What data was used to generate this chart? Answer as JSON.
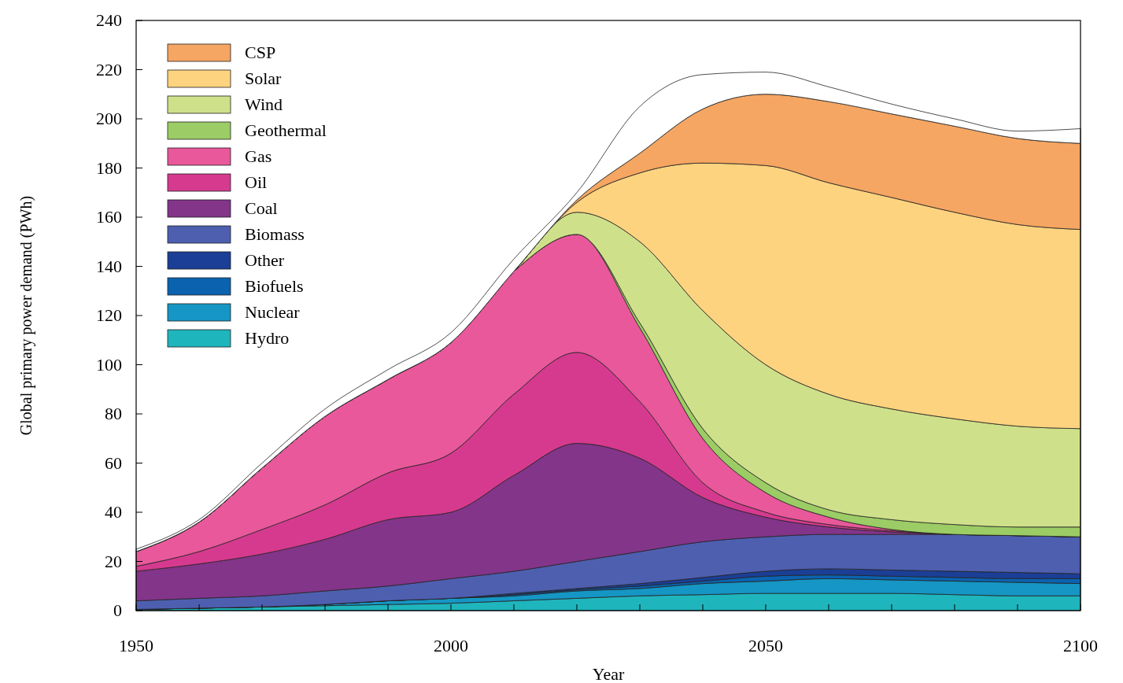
{
  "chart_data": {
    "type": "area",
    "stacked": true,
    "xlabel": "Year",
    "ylabel": "Global primary power demand (PWh)",
    "x": [
      1950,
      1960,
      1970,
      1980,
      1990,
      2000,
      2010,
      2020,
      2030,
      2040,
      2050,
      2060,
      2070,
      2080,
      2090,
      2100
    ],
    "xlim": [
      1950,
      2100
    ],
    "xticks": [
      1950,
      {
        "value": 1960,
        "label": null
      },
      {
        "value": 1970,
        "label": null
      },
      {
        "value": 1980,
        "label": null
      },
      {
        "value": 1990,
        "label": null
      },
      2000,
      {
        "value": 2010,
        "label": null
      },
      {
        "value": 2020,
        "label": null
      },
      {
        "value": 2030,
        "label": null
      },
      {
        "value": 2040,
        "label": null
      },
      2050,
      {
        "value": 2060,
        "label": null
      },
      {
        "value": 2070,
        "label": null
      },
      {
        "value": 2080,
        "label": null
      },
      {
        "value": 2090,
        "label": null
      },
      2100
    ],
    "ylim": [
      0,
      240
    ],
    "yticks": [
      0,
      20,
      40,
      60,
      80,
      100,
      120,
      140,
      160,
      180,
      200,
      220,
      240
    ],
    "grid": false,
    "legend": "top left",
    "series": [
      {
        "name": "Hydro",
        "color": "#1fb5bd",
        "values": [
          0.5,
          1,
          1.5,
          2,
          2.5,
          3,
          4,
          5,
          6,
          6.5,
          7,
          7,
          7,
          6.5,
          6,
          6
        ]
      },
      {
        "name": "Nuclear",
        "color": "#1596c4",
        "values": [
          0,
          0,
          0,
          0.5,
          1.5,
          2,
          2,
          3,
          3,
          4.5,
          5,
          6,
          5.5,
          5.5,
          5.5,
          5
        ]
      },
      {
        "name": "Biofuels",
        "color": "#0b63b0",
        "values": [
          0,
          0,
          0,
          0,
          0,
          0,
          0.5,
          0.5,
          1,
          1,
          2,
          1.5,
          1.5,
          1.5,
          1.5,
          2
        ]
      },
      {
        "name": "Other",
        "color": "#1b3f96",
        "values": [
          0,
          0,
          0,
          0,
          0,
          0,
          0.5,
          0.5,
          1,
          1.5,
          2,
          2.5,
          2.5,
          2.5,
          2.5,
          2
        ]
      },
      {
        "name": "Biomass",
        "color": "#4e5fb0",
        "values": [
          3.5,
          4,
          4.5,
          5.5,
          6,
          8,
          9,
          11,
          13,
          14.5,
          14,
          14,
          14.5,
          15,
          15,
          15
        ]
      },
      {
        "name": "Coal",
        "color": "#83358a",
        "values": [
          12,
          14,
          17,
          21,
          27,
          27,
          39,
          48,
          38,
          18,
          8,
          3,
          1,
          0,
          0,
          0
        ]
      },
      {
        "name": "Oil",
        "color": "#d63a8f",
        "values": [
          2,
          5,
          10,
          14,
          19,
          24,
          33,
          37,
          23,
          6,
          2,
          1,
          0.5,
          0,
          0,
          0
        ]
      },
      {
        "name": "Gas",
        "color": "#e8589a",
        "values": [
          6,
          12,
          25,
          36,
          38,
          45,
          50,
          48,
          30,
          18,
          8,
          3,
          0.5,
          0,
          0,
          0
        ]
      },
      {
        "name": "Geothermal",
        "color": "#9ccc65",
        "values": [
          0,
          0,
          0,
          0,
          0,
          0,
          0,
          0,
          2,
          4,
          4,
          3,
          4,
          4,
          3.5,
          4
        ]
      },
      {
        "name": "Wind",
        "color": "#cfe08a",
        "values": [
          0,
          0,
          0,
          0,
          0,
          0,
          0,
          9,
          33,
          48,
          48,
          47,
          45,
          43,
          41,
          40
        ]
      },
      {
        "name": "Solar",
        "color": "#fdd37f",
        "values": [
          0,
          0,
          0,
          0,
          0,
          0,
          0,
          4,
          28,
          60,
          81,
          86,
          86,
          84,
          82,
          81
        ]
      },
      {
        "name": "CSP",
        "color": "#f5a662",
        "values": [
          0,
          0,
          0,
          0,
          0,
          0,
          0,
          1,
          8,
          22,
          29,
          33,
          34,
          35,
          35,
          35
        ]
      },
      {
        "color": "#ffffff",
        "values": [
          1,
          1,
          2,
          3,
          4,
          4,
          5,
          3,
          19,
          14,
          9,
          6,
          4,
          3,
          3,
          6
        ]
      }
    ]
  }
}
